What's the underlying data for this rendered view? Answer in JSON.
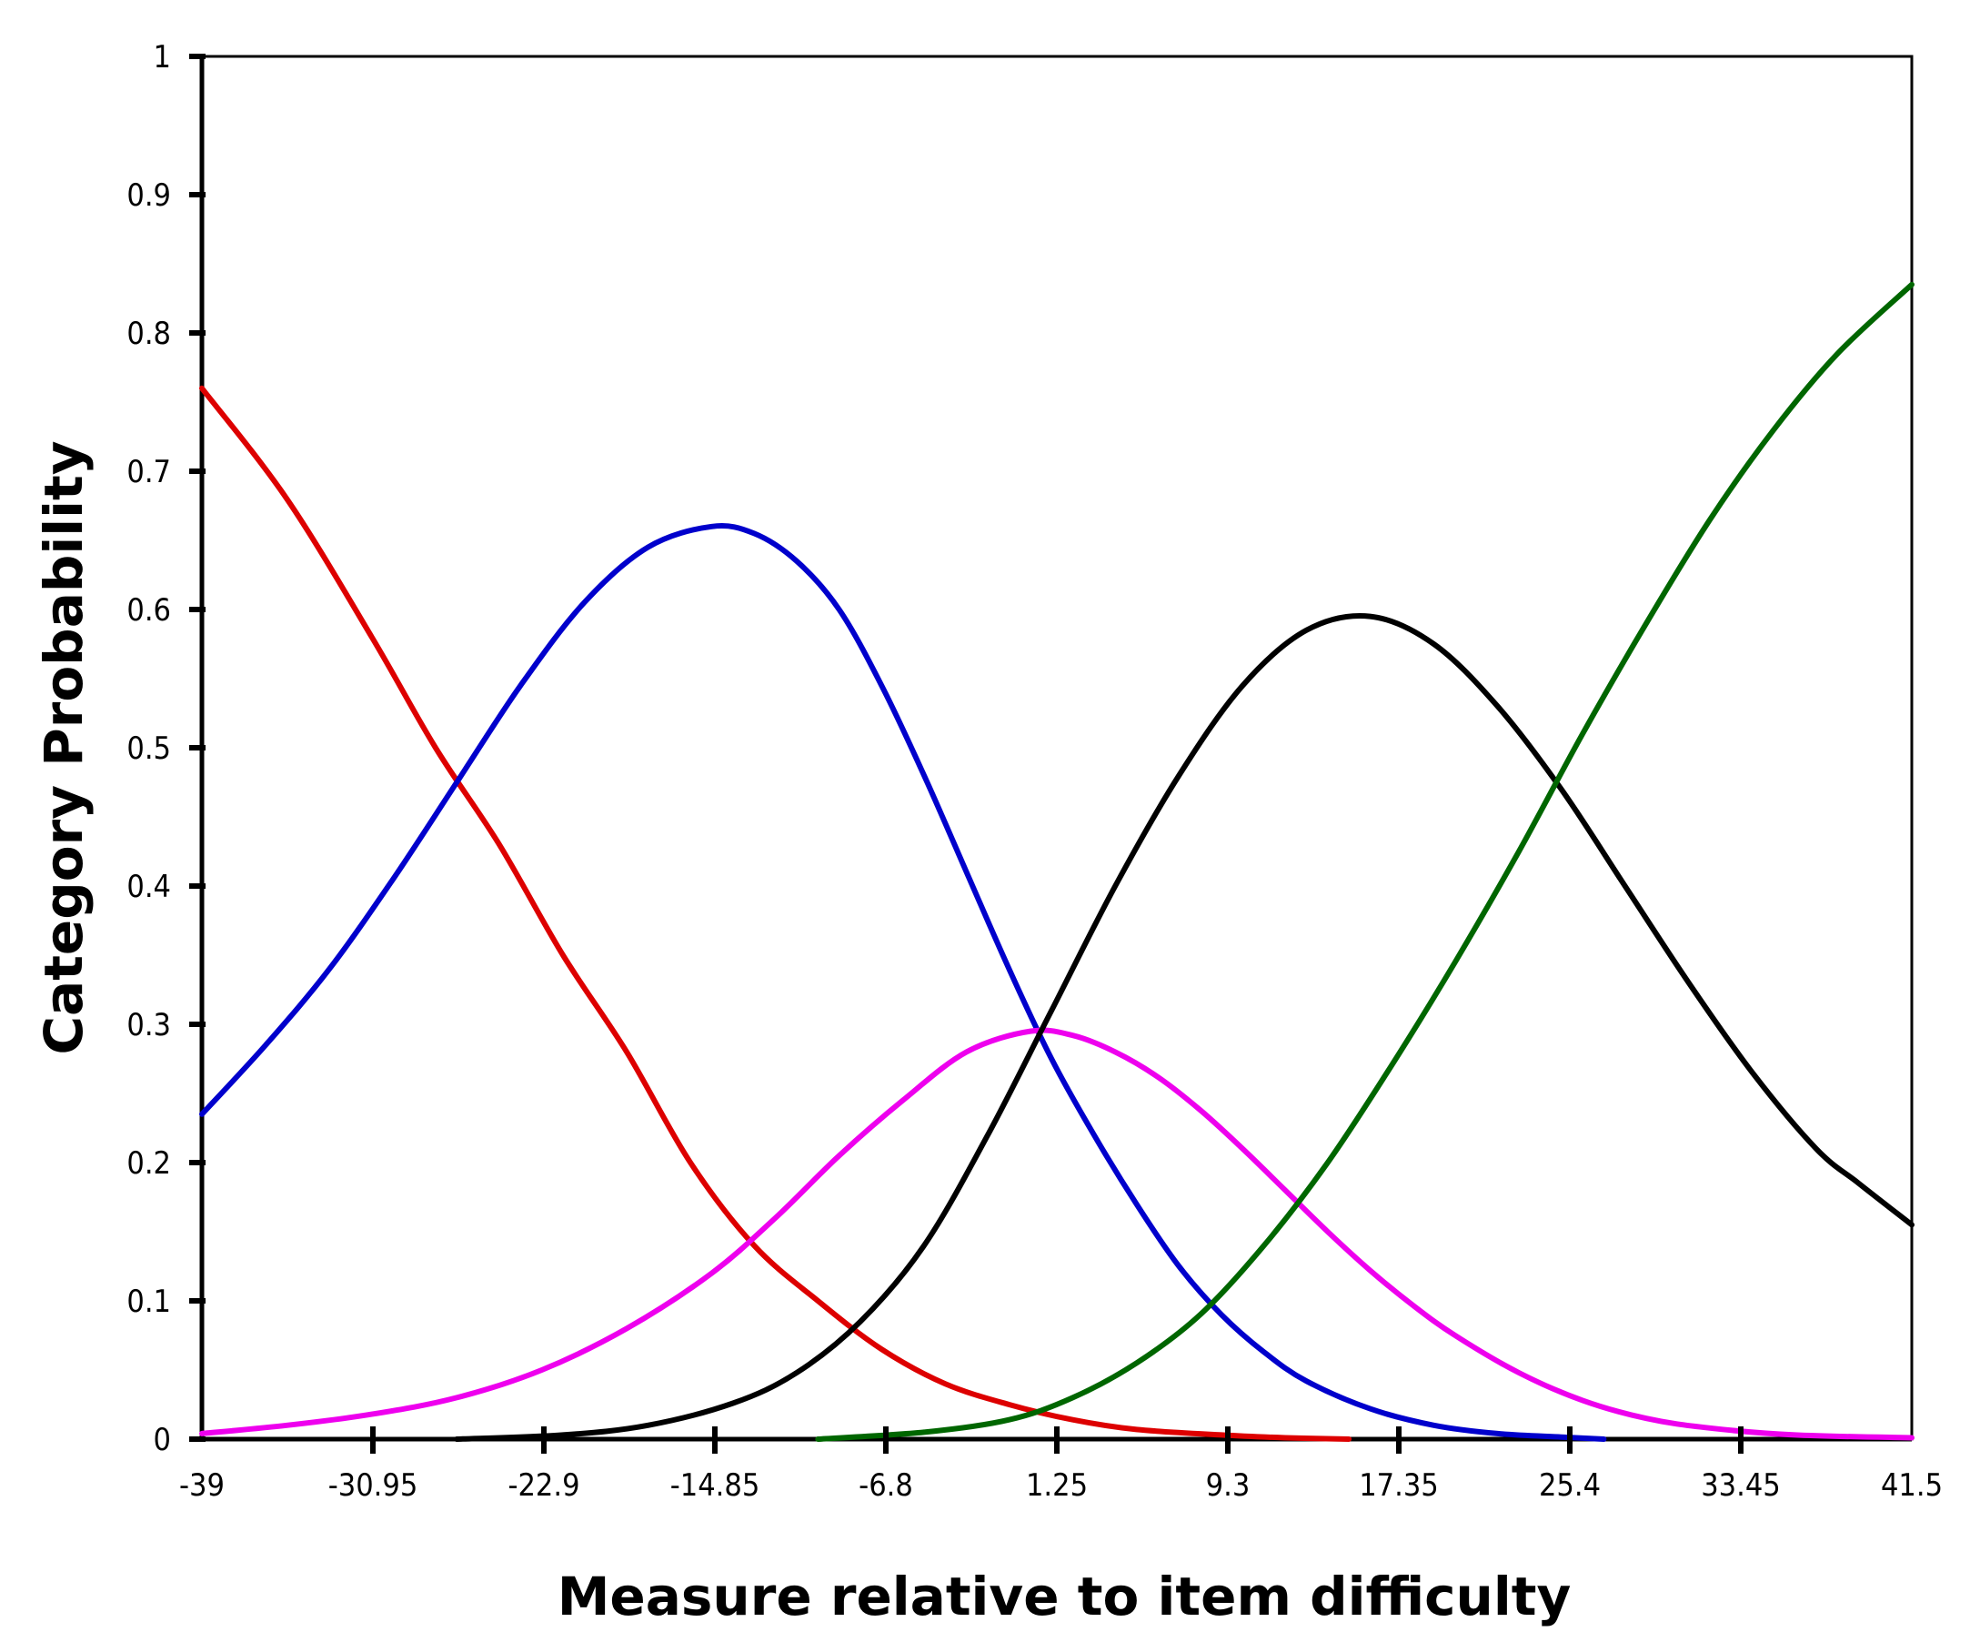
{
  "chart_data": {
    "type": "line",
    "xlabel": "Measure relative to item difficulty",
    "ylabel": "Category Probability",
    "xlim": [
      -39,
      41.5
    ],
    "ylim": [
      0,
      1
    ],
    "x_ticks": [
      "-39",
      "-30.95",
      "-22.9",
      "-14.85",
      "-6.8",
      "1.25",
      "9.3",
      "17.35",
      "25.4",
      "33.45",
      "41.5"
    ],
    "x_tick_values": [
      -39,
      -30.95,
      -22.9,
      -14.85,
      -6.8,
      1.25,
      9.3,
      17.35,
      25.4,
      33.45,
      41.5
    ],
    "y_ticks": [
      "0",
      "0.1",
      "0.2",
      "0.3",
      "0.4",
      "0.5",
      "0.6",
      "0.7",
      "0.8",
      "0.9",
      "1"
    ],
    "y_tick_values": [
      0,
      0.1,
      0.2,
      0.3,
      0.4,
      0.5,
      0.6,
      0.7,
      0.8,
      0.9,
      1
    ],
    "grid": false,
    "legend": "none",
    "series": [
      {
        "color": "#dd0000",
        "x": [
          -39,
          -35,
          -31,
          -28,
          -25,
          -22,
          -19,
          -16,
          -13,
          -10,
          -7,
          -4,
          -1,
          2,
          5,
          9,
          12,
          15
        ],
        "y": [
          0.76,
          0.68,
          0.58,
          0.5,
          0.43,
          0.35,
          0.28,
          0.2,
          0.14,
          0.1,
          0.065,
          0.04,
          0.025,
          0.014,
          0.007,
          0.003,
          0.001,
          0
        ]
      },
      {
        "color": "#0000cc",
        "x": [
          -39,
          -36,
          -33,
          -30,
          -27,
          -24,
          -21,
          -18,
          -15,
          -13,
          -11,
          -9,
          -7,
          -5,
          -3,
          -1,
          1,
          3,
          5,
          7,
          9,
          11,
          13,
          16,
          19,
          22,
          25,
          27
        ],
        "y": [
          0.235,
          0.285,
          0.34,
          0.405,
          0.475,
          0.545,
          0.605,
          0.645,
          0.66,
          0.655,
          0.635,
          0.6,
          0.545,
          0.48,
          0.41,
          0.34,
          0.275,
          0.22,
          0.17,
          0.125,
          0.09,
          0.063,
          0.042,
          0.022,
          0.01,
          0.004,
          0.0015,
          0
        ]
      },
      {
        "color": "#ee00ee",
        "x": [
          -39,
          -35,
          -31,
          -27,
          -23,
          -19,
          -15,
          -12,
          -9,
          -6,
          -3,
          0,
          2,
          4,
          6,
          8,
          10,
          12,
          14,
          16,
          18,
          20,
          23,
          26,
          29,
          32,
          36,
          41.5
        ],
        "y": [
          0.004,
          0.01,
          0.018,
          0.03,
          0.05,
          0.08,
          0.12,
          0.16,
          0.205,
          0.245,
          0.28,
          0.295,
          0.292,
          0.28,
          0.262,
          0.238,
          0.21,
          0.18,
          0.15,
          0.122,
          0.097,
          0.075,
          0.048,
          0.028,
          0.015,
          0.008,
          0.003,
          0.001
        ]
      },
      {
        "color": "#000000",
        "x": [
          -27,
          -22,
          -18,
          -14,
          -11,
          -8,
          -5,
          -2,
          1,
          4,
          7,
          10,
          13,
          16,
          19,
          22,
          25,
          28,
          31,
          34,
          37,
          39,
          41.5
        ],
        "y": [
          0,
          0.003,
          0.01,
          0.026,
          0.048,
          0.085,
          0.14,
          0.22,
          0.31,
          0.4,
          0.48,
          0.545,
          0.585,
          0.595,
          0.575,
          0.53,
          0.47,
          0.4,
          0.33,
          0.265,
          0.21,
          0.185,
          0.155
        ]
      },
      {
        "color": "#006600",
        "x": [
          -10,
          -5,
          -1,
          2,
          5,
          8,
          11,
          14,
          17,
          20,
          23,
          26,
          29,
          32,
          35,
          38,
          41.5
        ],
        "y": [
          0,
          0.005,
          0.014,
          0.03,
          0.055,
          0.09,
          0.14,
          0.2,
          0.27,
          0.345,
          0.425,
          0.51,
          0.59,
          0.665,
          0.73,
          0.785,
          0.835
        ]
      }
    ]
  }
}
